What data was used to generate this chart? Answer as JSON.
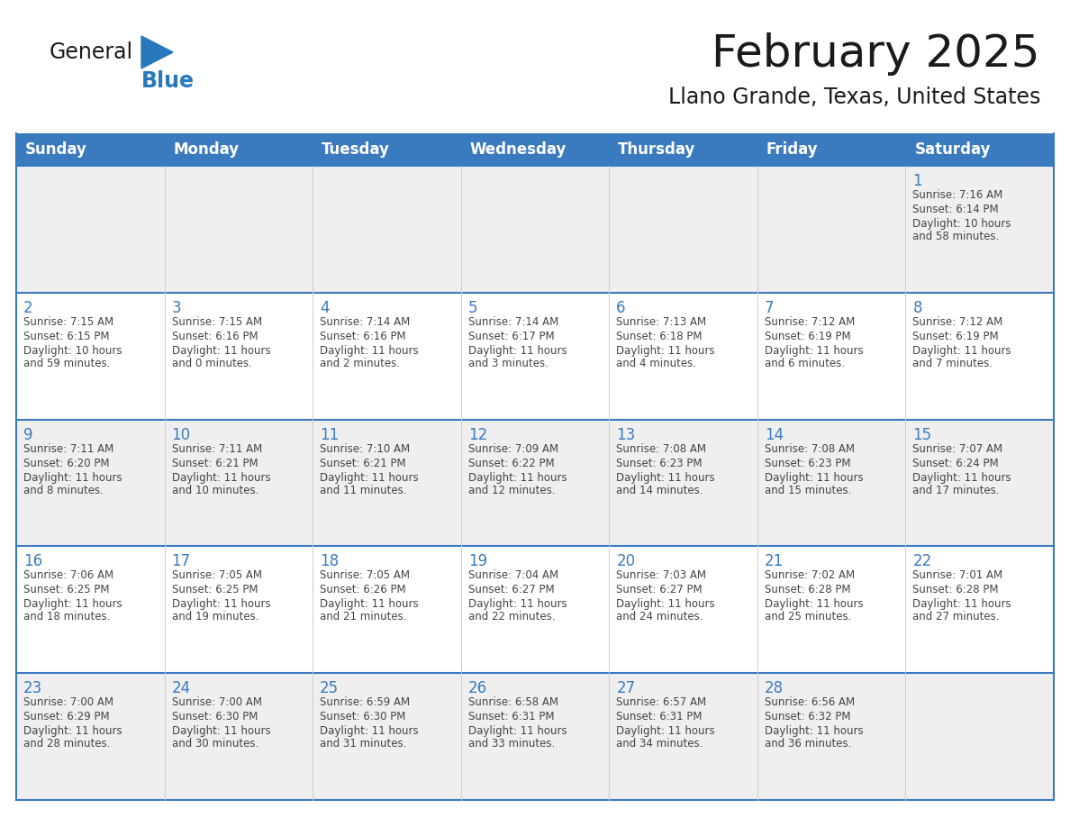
{
  "title": "February 2025",
  "subtitle": "Llano Grande, Texas, United States",
  "days_of_week": [
    "Sunday",
    "Monday",
    "Tuesday",
    "Wednesday",
    "Thursday",
    "Friday",
    "Saturday"
  ],
  "header_bg": "#3a7abf",
  "header_text": "#ffffff",
  "row_bg_gray": "#efefef",
  "row_bg_white": "#ffffff",
  "border_color": "#3a7abf",
  "text_color": "#444444",
  "day_num_color": "#3a7abf",
  "title_color": "#1a1a1a",
  "logo_general_color": "#1a1a1a",
  "logo_blue_color": "#2878be",
  "calendar_data": [
    [
      null,
      null,
      null,
      null,
      null,
      null,
      {
        "day": 1,
        "sunrise": "7:16 AM",
        "sunset": "6:14 PM",
        "daylight": "10 hours",
        "daylight2": "and 58 minutes."
      }
    ],
    [
      {
        "day": 2,
        "sunrise": "7:15 AM",
        "sunset": "6:15 PM",
        "daylight": "10 hours",
        "daylight2": "and 59 minutes."
      },
      {
        "day": 3,
        "sunrise": "7:15 AM",
        "sunset": "6:16 PM",
        "daylight": "11 hours",
        "daylight2": "and 0 minutes."
      },
      {
        "day": 4,
        "sunrise": "7:14 AM",
        "sunset": "6:16 PM",
        "daylight": "11 hours",
        "daylight2": "and 2 minutes."
      },
      {
        "day": 5,
        "sunrise": "7:14 AM",
        "sunset": "6:17 PM",
        "daylight": "11 hours",
        "daylight2": "and 3 minutes."
      },
      {
        "day": 6,
        "sunrise": "7:13 AM",
        "sunset": "6:18 PM",
        "daylight": "11 hours",
        "daylight2": "and 4 minutes."
      },
      {
        "day": 7,
        "sunrise": "7:12 AM",
        "sunset": "6:19 PM",
        "daylight": "11 hours",
        "daylight2": "and 6 minutes."
      },
      {
        "day": 8,
        "sunrise": "7:12 AM",
        "sunset": "6:19 PM",
        "daylight": "11 hours",
        "daylight2": "and 7 minutes."
      }
    ],
    [
      {
        "day": 9,
        "sunrise": "7:11 AM",
        "sunset": "6:20 PM",
        "daylight": "11 hours",
        "daylight2": "and 8 minutes."
      },
      {
        "day": 10,
        "sunrise": "7:11 AM",
        "sunset": "6:21 PM",
        "daylight": "11 hours",
        "daylight2": "and 10 minutes."
      },
      {
        "day": 11,
        "sunrise": "7:10 AM",
        "sunset": "6:21 PM",
        "daylight": "11 hours",
        "daylight2": "and 11 minutes."
      },
      {
        "day": 12,
        "sunrise": "7:09 AM",
        "sunset": "6:22 PM",
        "daylight": "11 hours",
        "daylight2": "and 12 minutes."
      },
      {
        "day": 13,
        "sunrise": "7:08 AM",
        "sunset": "6:23 PM",
        "daylight": "11 hours",
        "daylight2": "and 14 minutes."
      },
      {
        "day": 14,
        "sunrise": "7:08 AM",
        "sunset": "6:23 PM",
        "daylight": "11 hours",
        "daylight2": "and 15 minutes."
      },
      {
        "day": 15,
        "sunrise": "7:07 AM",
        "sunset": "6:24 PM",
        "daylight": "11 hours",
        "daylight2": "and 17 minutes."
      }
    ],
    [
      {
        "day": 16,
        "sunrise": "7:06 AM",
        "sunset": "6:25 PM",
        "daylight": "11 hours",
        "daylight2": "and 18 minutes."
      },
      {
        "day": 17,
        "sunrise": "7:05 AM",
        "sunset": "6:25 PM",
        "daylight": "11 hours",
        "daylight2": "and 19 minutes."
      },
      {
        "day": 18,
        "sunrise": "7:05 AM",
        "sunset": "6:26 PM",
        "daylight": "11 hours",
        "daylight2": "and 21 minutes."
      },
      {
        "day": 19,
        "sunrise": "7:04 AM",
        "sunset": "6:27 PM",
        "daylight": "11 hours",
        "daylight2": "and 22 minutes."
      },
      {
        "day": 20,
        "sunrise": "7:03 AM",
        "sunset": "6:27 PM",
        "daylight": "11 hours",
        "daylight2": "and 24 minutes."
      },
      {
        "day": 21,
        "sunrise": "7:02 AM",
        "sunset": "6:28 PM",
        "daylight": "11 hours",
        "daylight2": "and 25 minutes."
      },
      {
        "day": 22,
        "sunrise": "7:01 AM",
        "sunset": "6:28 PM",
        "daylight": "11 hours",
        "daylight2": "and 27 minutes."
      }
    ],
    [
      {
        "day": 23,
        "sunrise": "7:00 AM",
        "sunset": "6:29 PM",
        "daylight": "11 hours",
        "daylight2": "and 28 minutes."
      },
      {
        "day": 24,
        "sunrise": "7:00 AM",
        "sunset": "6:30 PM",
        "daylight": "11 hours",
        "daylight2": "and 30 minutes."
      },
      {
        "day": 25,
        "sunrise": "6:59 AM",
        "sunset": "6:30 PM",
        "daylight": "11 hours",
        "daylight2": "and 31 minutes."
      },
      {
        "day": 26,
        "sunrise": "6:58 AM",
        "sunset": "6:31 PM",
        "daylight": "11 hours",
        "daylight2": "and 33 minutes."
      },
      {
        "day": 27,
        "sunrise": "6:57 AM",
        "sunset": "6:31 PM",
        "daylight": "11 hours",
        "daylight2": "and 34 minutes."
      },
      {
        "day": 28,
        "sunrise": "6:56 AM",
        "sunset": "6:32 PM",
        "daylight": "11 hours",
        "daylight2": "and 36 minutes."
      },
      null
    ]
  ],
  "figsize": [
    11.88,
    9.18
  ],
  "dpi": 100
}
